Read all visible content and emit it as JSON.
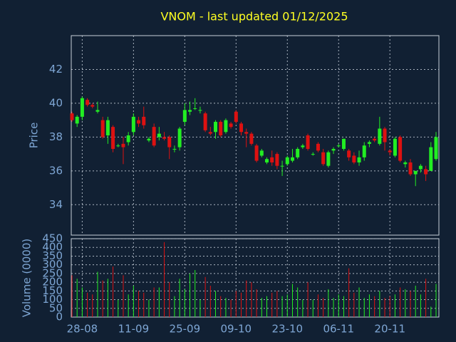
{
  "chart_data": {
    "type": "candlestick",
    "title": "VNOM - last updated 01/12/2025",
    "ylabel": "Price",
    "volume_ylabel": "Volume (0000)",
    "categories": [
      null,
      null,
      "28-08",
      null,
      null,
      null,
      null,
      null,
      null,
      null,
      null,
      null,
      "11-09",
      null,
      null,
      null,
      null,
      null,
      null,
      null,
      null,
      null,
      "25-09",
      null,
      null,
      null,
      null,
      null,
      null,
      null,
      null,
      null,
      "09-10",
      null,
      null,
      null,
      null,
      null,
      null,
      null,
      null,
      null,
      "23-10",
      null,
      null,
      null,
      null,
      null,
      null,
      null,
      null,
      null,
      "06-11",
      null,
      null,
      null,
      null,
      null,
      null,
      null,
      null,
      null,
      "20-11",
      null,
      null,
      null,
      null,
      null,
      null,
      null,
      null,
      null
    ],
    "open": [
      39.4,
      38.8,
      39.2,
      40.2,
      39.9,
      39.5,
      39.0,
      38.1,
      38.6,
      37.5,
      37.6,
      37.7,
      38.3,
      39.0,
      39.2,
      37.8,
      38.6,
      38.0,
      38.0,
      38.0,
      37.3,
      37.4,
      38.9,
      39.5,
      39.7,
      39.6,
      39.4,
      38.3,
      38.3,
      38.9,
      38.3,
      38.8,
      39.5,
      38.8,
      38.3,
      38.2,
      37.5,
      36.9,
      36.5,
      36.8,
      37.0,
      36.3,
      36.4,
      36.6,
      36.8,
      37.4,
      38.1,
      37.0,
      37.6,
      37.1,
      36.3,
      37.2,
      37.5,
      37.3,
      37.2,
      36.9,
      36.5,
      36.8,
      37.6,
      37.9,
      37.6,
      38.5,
      37.2,
      36.9,
      38.0,
      36.4,
      36.5,
      35.8,
      36.1,
      36.1,
      36.0,
      36.7
    ],
    "high": [
      39.5,
      39.3,
      40.4,
      40.3,
      40.0,
      40.1,
      39.2,
      39.2,
      38.7,
      37.6,
      38.0,
      38.3,
      39.4,
      39.2,
      39.8,
      38.0,
      38.8,
      38.6,
      38.3,
      38.1,
      37.5,
      38.6,
      40.0,
      40.1,
      40.3,
      39.8,
      39.5,
      38.6,
      39.0,
      39.0,
      39.1,
      38.9,
      39.6,
      38.9,
      38.5,
      38.3,
      37.6,
      37.3,
      36.8,
      37.2,
      37.1,
      36.6,
      36.9,
      37.3,
      37.4,
      37.6,
      38.2,
      37.1,
      37.7,
      37.3,
      37.2,
      37.4,
      37.6,
      37.9,
      37.3,
      37.1,
      37.2,
      37.7,
      37.8,
      38.0,
      39.2,
      38.6,
      37.3,
      38.0,
      38.1,
      36.6,
      36.7,
      36.0,
      36.4,
      36.3,
      37.7,
      38.3
    ],
    "low": [
      38.9,
      38.6,
      39.0,
      39.8,
      39.7,
      39.4,
      37.9,
      37.6,
      37.1,
      37.4,
      36.4,
      37.5,
      38.1,
      38.6,
      38.5,
      37.7,
      37.4,
      37.8,
      37.8,
      36.7,
      37.1,
      37.2,
      38.7,
      39.3,
      39.6,
      39.4,
      38.3,
      38.1,
      37.9,
      38.0,
      38.2,
      38.5,
      38.8,
      38.1,
      37.4,
      37.5,
      36.5,
      36.8,
      36.4,
      36.3,
      36.1,
      35.7,
      36.3,
      36.5,
      36.7,
      37.3,
      37.2,
      36.9,
      37.1,
      36.3,
      36.2,
      37.0,
      37.4,
      37.2,
      36.6,
      36.4,
      36.3,
      36.6,
      37.4,
      37.7,
      37.5,
      37.2,
      36.9,
      36.8,
      36.5,
      36.2,
      35.7,
      35.1,
      35.9,
      35.4,
      36.0,
      36.6
    ],
    "close": [
      39.0,
      39.2,
      40.3,
      39.9,
      39.8,
      39.6,
      38.0,
      39.0,
      37.3,
      37.5,
      37.4,
      38.1,
      39.2,
      38.8,
      38.7,
      37.9,
      37.5,
      38.2,
      37.9,
      37.4,
      37.3,
      38.5,
      39.6,
      39.6,
      39.7,
      39.6,
      38.4,
      38.2,
      38.9,
      38.1,
      39.0,
      38.6,
      38.9,
      38.3,
      38.2,
      37.6,
      36.6,
      37.2,
      36.7,
      36.5,
      36.3,
      36.3,
      36.8,
      36.8,
      37.3,
      37.5,
      37.3,
      37.0,
      37.2,
      36.4,
      37.1,
      37.3,
      37.5,
      37.9,
      36.8,
      36.5,
      36.8,
      37.5,
      37.7,
      37.8,
      38.5,
      37.7,
      37.1,
      37.9,
      36.6,
      36.5,
      35.8,
      36.0,
      36.3,
      35.8,
      37.4,
      38.0
    ],
    "volume": [
      240,
      220,
      170,
      140,
      130,
      260,
      210,
      220,
      290,
      100,
      240,
      130,
      180,
      150,
      140,
      100,
      170,
      170,
      430,
      200,
      120,
      220,
      160,
      250,
      270,
      100,
      230,
      180,
      150,
      120,
      110,
      100,
      150,
      140,
      210,
      200,
      160,
      110,
      120,
      140,
      150,
      120,
      130,
      190,
      170,
      100,
      200,
      100,
      130,
      110,
      160,
      110,
      130,
      120,
      280,
      140,
      170,
      110,
      130,
      120,
      150,
      110,
      120,
      130,
      170,
      160,
      150,
      180,
      130,
      220,
      60,
      190
    ],
    "up_color": "#22ee22",
    "down_color": "#dd1111",
    "ylim": [
      32.2,
      44
    ],
    "yticks": [
      34,
      36,
      38,
      40,
      42
    ],
    "volume_ylim": [
      0,
      450
    ],
    "volume_yticks": [
      0,
      50,
      100,
      150,
      200,
      250,
      300,
      350,
      400,
      450
    ],
    "grid": true
  }
}
